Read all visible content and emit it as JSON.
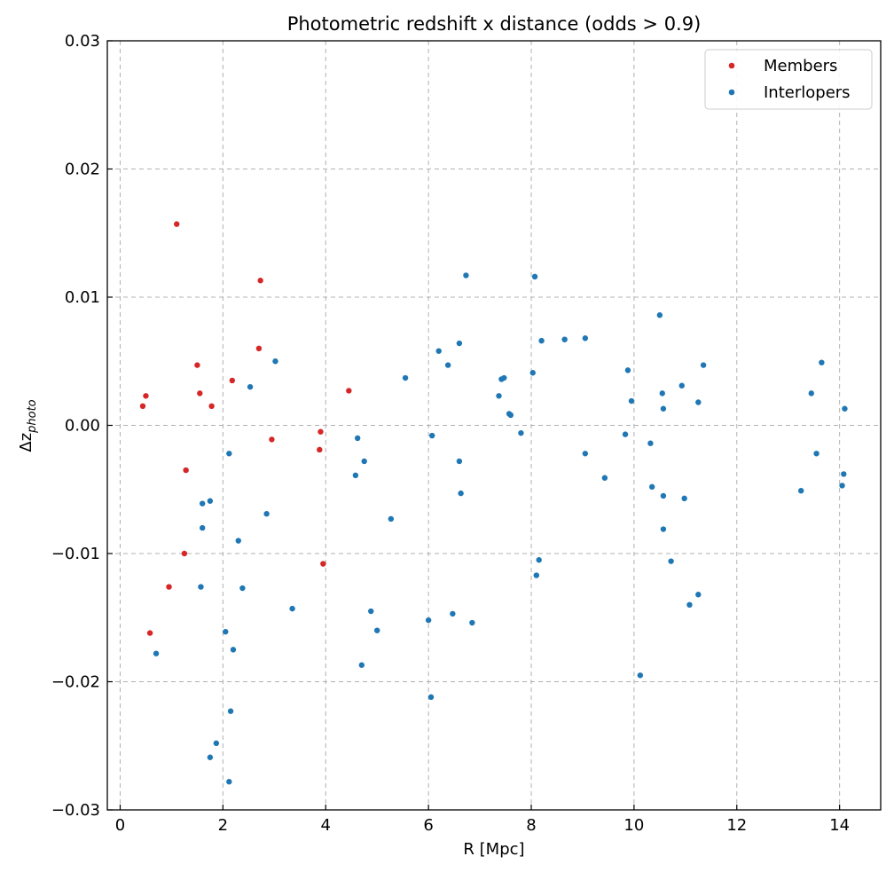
{
  "chart_data": {
    "type": "scatter",
    "title": "Photometric redshift x distance (odds > 0.9)",
    "xlabel": "R [Mpc]",
    "ylabel_base": "Δz",
    "ylabel_sub": "photo",
    "xlim": [
      -0.25,
      14.8
    ],
    "ylim": [
      -0.03,
      0.03
    ],
    "xticks": [
      0,
      2,
      4,
      6,
      8,
      10,
      12,
      14
    ],
    "xtick_labels": [
      "0",
      "2",
      "4",
      "6",
      "8",
      "10",
      "12",
      "14"
    ],
    "yticks": [
      -0.03,
      -0.02,
      -0.01,
      0.0,
      0.01,
      0.02,
      0.03
    ],
    "ytick_labels": [
      "−0.03",
      "−0.02",
      "−0.01",
      "0.00",
      "0.01",
      "0.02",
      "0.03"
    ],
    "grid": true,
    "legend_position": "top-right",
    "series": [
      {
        "name": "Members",
        "color": "#d62728",
        "points": [
          [
            0.44,
            0.0015
          ],
          [
            0.5,
            0.0023
          ],
          [
            0.58,
            -0.0162
          ],
          [
            0.95,
            -0.0126
          ],
          [
            1.1,
            0.0157
          ],
          [
            1.25,
            -0.01
          ],
          [
            1.28,
            -0.0035
          ],
          [
            1.5,
            0.0047
          ],
          [
            1.55,
            0.0025
          ],
          [
            1.78,
            0.0015
          ],
          [
            2.18,
            0.0035
          ],
          [
            2.7,
            0.006
          ],
          [
            2.73,
            0.0113
          ],
          [
            2.95,
            -0.0011
          ],
          [
            3.88,
            -0.0019
          ],
          [
            3.9,
            -0.0005
          ],
          [
            3.95,
            -0.0108
          ],
          [
            4.45,
            0.0027
          ]
        ]
      },
      {
        "name": "Interlopers",
        "color": "#1f77b4",
        "points": [
          [
            0.7,
            -0.0178
          ],
          [
            1.57,
            -0.0126
          ],
          [
            1.6,
            -0.0061
          ],
          [
            1.6,
            -0.008
          ],
          [
            1.75,
            -0.0059
          ],
          [
            1.75,
            -0.0259
          ],
          [
            1.87,
            -0.0248
          ],
          [
            2.05,
            -0.0161
          ],
          [
            2.12,
            -0.0022
          ],
          [
            2.12,
            -0.0278
          ],
          [
            2.15,
            -0.0223
          ],
          [
            2.2,
            -0.0175
          ],
          [
            2.3,
            -0.009
          ],
          [
            2.38,
            -0.0127
          ],
          [
            2.53,
            0.003
          ],
          [
            2.85,
            -0.0069
          ],
          [
            3.02,
            0.005
          ],
          [
            3.35,
            -0.0143
          ],
          [
            4.58,
            -0.0039
          ],
          [
            4.62,
            -0.001
          ],
          [
            4.7,
            -0.0187
          ],
          [
            4.75,
            -0.0028
          ],
          [
            4.88,
            -0.0145
          ],
          [
            5.0,
            -0.016
          ],
          [
            5.27,
            -0.0073
          ],
          [
            5.55,
            0.0037
          ],
          [
            6.0,
            -0.0152
          ],
          [
            6.05,
            -0.0212
          ],
          [
            6.07,
            -0.0008
          ],
          [
            6.2,
            0.0058
          ],
          [
            6.38,
            0.0047
          ],
          [
            6.47,
            -0.0147
          ],
          [
            6.6,
            0.0064
          ],
          [
            6.6,
            -0.0028
          ],
          [
            6.63,
            -0.0053
          ],
          [
            6.73,
            0.0117
          ],
          [
            6.85,
            -0.0154
          ],
          [
            7.37,
            0.0023
          ],
          [
            7.42,
            0.0036
          ],
          [
            7.47,
            0.0037
          ],
          [
            7.57,
            0.0009
          ],
          [
            7.6,
            0.0008
          ],
          [
            7.8,
            -0.0006
          ],
          [
            8.03,
            0.0041
          ],
          [
            8.07,
            0.0116
          ],
          [
            8.1,
            -0.0117
          ],
          [
            8.15,
            -0.0105
          ],
          [
            8.2,
            0.0066
          ],
          [
            8.65,
            0.0067
          ],
          [
            9.05,
            0.0068
          ],
          [
            9.05,
            -0.0022
          ],
          [
            9.43,
            -0.0041
          ],
          [
            9.83,
            -0.0007
          ],
          [
            9.88,
            0.0043
          ],
          [
            9.95,
            0.0019
          ],
          [
            10.12,
            -0.0195
          ],
          [
            10.32,
            -0.0014
          ],
          [
            10.35,
            -0.0048
          ],
          [
            10.5,
            0.0086
          ],
          [
            10.55,
            0.0025
          ],
          [
            10.57,
            0.0013
          ],
          [
            10.57,
            -0.0055
          ],
          [
            10.57,
            -0.0081
          ],
          [
            10.72,
            -0.0106
          ],
          [
            10.93,
            0.0031
          ],
          [
            10.98,
            -0.0057
          ],
          [
            11.08,
            -0.014
          ],
          [
            11.25,
            0.0018
          ],
          [
            11.25,
            -0.0132
          ],
          [
            11.35,
            0.0047
          ],
          [
            13.25,
            -0.0051
          ],
          [
            13.45,
            0.0025
          ],
          [
            13.55,
            -0.0022
          ],
          [
            13.65,
            0.0049
          ],
          [
            14.05,
            -0.0047
          ],
          [
            14.08,
            -0.0038
          ],
          [
            14.1,
            0.0013
          ]
        ]
      }
    ]
  }
}
